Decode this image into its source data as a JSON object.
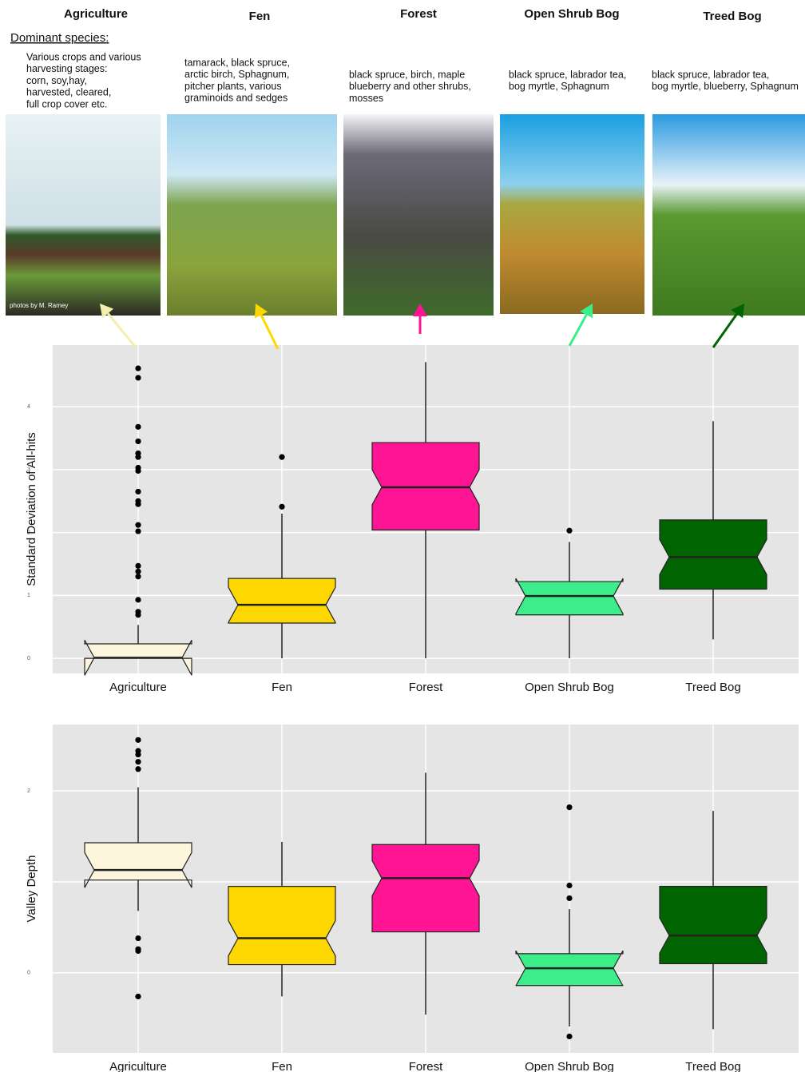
{
  "header": {
    "dominant_label": "Dominant species:",
    "photo_credit": "photos by M. Ramey",
    "columns": [
      {
        "title": "Agriculture",
        "species": [
          "Various crops and various",
          "harvesting stages:",
          "corn, soy,hay,",
          "harvested, cleared,",
          "full crop cover etc."
        ]
      },
      {
        "title": "Fen",
        "species": [
          "tamarack, black spruce,",
          "arctic birch, Sphagnum,",
          " pitcher plants, various",
          "graminoids and sedges"
        ]
      },
      {
        "title": "Forest",
        "species": [
          "black spruce, birch, maple",
          "blueberry and other shrubs,",
          "mosses"
        ]
      },
      {
        "title": "Open Shrub Bog",
        "species": [
          "black spruce, labrador tea,",
          "bog myrtle, Sphagnum"
        ]
      },
      {
        "title": "Treed Bog",
        "species": [
          "black spruce, labrador tea,",
          "bog myrtle, blueberry, Sphagnum"
        ]
      }
    ]
  },
  "chart_data": [
    {
      "type": "box",
      "y_label": "Standard Deviation of All-hits",
      "categories": [
        "Agriculture",
        "Fen",
        "Forest",
        "Open Shrub Bog",
        "Treed Bog"
      ],
      "colors": [
        "#fdf5dc",
        "#ffd700",
        "#ff1493",
        "#3cee8a",
        "#006400"
      ],
      "ylim": [
        -0.24,
        4.98
      ],
      "yticks": [
        0,
        1,
        2,
        3,
        4
      ],
      "grid": true,
      "boxes": [
        {
          "whislo": 0,
          "q1": 0,
          "med": 0.01,
          "q3": 0.23,
          "whishi": 0.53,
          "fliers": [
            4.61,
            4.46,
            3.68,
            3.45,
            3.26,
            3.2,
            3.03,
            2.98,
            2.65,
            2.5,
            2.45,
            2.12,
            2.02,
            1.47,
            1.38,
            1.3,
            0.93,
            0.74,
            0.69
          ]
        },
        {
          "whislo": 0,
          "q1": 0.56,
          "med": 0.85,
          "q3": 1.27,
          "whishi": 2.3,
          "fliers": [
            2.41,
            3.2
          ]
        },
        {
          "whislo": 0,
          "q1": 2.04,
          "med": 2.72,
          "q3": 3.43,
          "whishi": 4.71,
          "fliers": []
        },
        {
          "whislo": 0,
          "q1": 0.69,
          "med": 0.99,
          "q3": 1.22,
          "whishi": 1.85,
          "fliers": [
            2.03
          ]
        },
        {
          "whislo": 0.3,
          "q1": 1.1,
          "med": 1.61,
          "q3": 2.2,
          "whishi": 3.77,
          "fliers": []
        }
      ]
    },
    {
      "type": "box",
      "y_label": "Valley Depth",
      "categories": [
        "Agriculture",
        "Fen",
        "Forest",
        "Open Shrub Bog",
        "Treed Bog"
      ],
      "colors": [
        "#fdf5dc",
        "#ffd700",
        "#ff1493",
        "#3cee8a",
        "#006400"
      ],
      "ylim": [
        -0.88,
        2.73
      ],
      "yticks": [
        0,
        1,
        2
      ],
      "grid": true,
      "boxes": [
        {
          "whislo": 0.68,
          "q1": 1.02,
          "med": 1.13,
          "q3": 1.43,
          "whishi": 2.04,
          "fliers": [
            2.56,
            2.44,
            2.4,
            2.32,
            2.24,
            0.38,
            0.26,
            0.24,
            -0.26
          ]
        },
        {
          "whislo": -0.26,
          "q1": 0.09,
          "med": 0.38,
          "q3": 0.95,
          "whishi": 1.44,
          "fliers": []
        },
        {
          "whislo": -0.46,
          "q1": 0.45,
          "med": 1.04,
          "q3": 1.41,
          "whishi": 2.2,
          "fliers": []
        },
        {
          "whislo": -0.59,
          "q1": -0.14,
          "med": 0.05,
          "q3": 0.21,
          "whishi": 0.7,
          "fliers": [
            1.82,
            0.96,
            0.82,
            -0.7
          ]
        },
        {
          "whislo": -0.62,
          "q1": 0.1,
          "med": 0.41,
          "q3": 0.95,
          "whishi": 1.78,
          "fliers": []
        }
      ]
    }
  ]
}
